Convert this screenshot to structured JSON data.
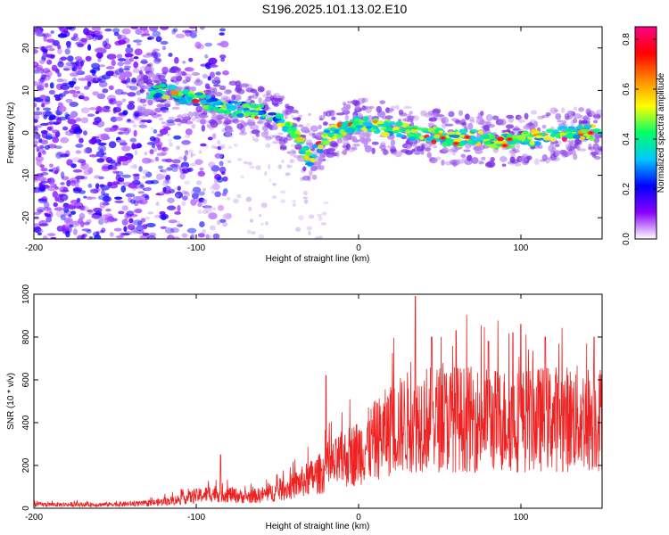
{
  "title": "S196.2025.101.13.02.E10",
  "colors": {
    "signal": "#ee2222",
    "axis": "#000000"
  },
  "chart_data": [
    {
      "type": "heatmap",
      "xlabel": "Height of straight line (km)",
      "ylabel": "Frequency (Hz)",
      "xlim": [
        -200,
        150
      ],
      "ylim": [
        -25,
        25
      ],
      "xticks": [
        -200,
        -100,
        0,
        100
      ],
      "yticks": [
        -20,
        -10,
        0,
        10,
        20
      ],
      "colorbar": {
        "label": "Normalized spectral amplitude",
        "range": [
          0,
          0.85
        ],
        "ticks": [
          0.0,
          0.2,
          0.4,
          0.6,
          0.8
        ],
        "colormap": [
          "#ffffff",
          "#8800ff",
          "#0000ff",
          "#00c8ff",
          "#00ff66",
          "#ffff00",
          "#ff8800",
          "#ff0000",
          "#ff0088"
        ]
      },
      "ridge": {
        "description_points": [
          [
            -125,
            10
          ],
          [
            -100,
            8
          ],
          [
            -80,
            6
          ],
          [
            -60,
            5
          ],
          [
            -45,
            2
          ],
          [
            -35,
            -3
          ],
          [
            -30,
            -6
          ],
          [
            -20,
            -1
          ],
          [
            -10,
            1
          ],
          [
            0,
            2
          ],
          [
            20,
            1
          ],
          [
            40,
            0
          ],
          [
            55,
            -1.5
          ],
          [
            70,
            -1
          ],
          [
            90,
            -2
          ],
          [
            110,
            -1
          ],
          [
            130,
            0
          ],
          [
            150,
            0
          ]
        ]
      }
    },
    {
      "type": "line",
      "xlabel": "Height of straight line (km)",
      "ylabel": "SNR (10 * v/v)",
      "xlim": [
        -200,
        150
      ],
      "ylim": [
        0,
        1000
      ],
      "xticks": [
        -200,
        -100,
        0,
        100
      ],
      "yticks": [
        0,
        200,
        400,
        600,
        800,
        1000
      ],
      "envelope": [
        [
          -200,
          20
        ],
        [
          -160,
          20
        ],
        [
          -130,
          25
        ],
        [
          -115,
          40
        ],
        [
          -100,
          65
        ],
        [
          -90,
          80
        ],
        [
          -80,
          75
        ],
        [
          -70,
          60
        ],
        [
          -60,
          70
        ],
        [
          -50,
          90
        ],
        [
          -40,
          120
        ],
        [
          -30,
          160
        ],
        [
          -20,
          200
        ],
        [
          -10,
          260
        ],
        [
          0,
          300
        ],
        [
          10,
          360
        ],
        [
          20,
          420
        ],
        [
          30,
          460
        ],
        [
          40,
          480
        ],
        [
          60,
          480
        ],
        [
          80,
          470
        ],
        [
          100,
          470
        ],
        [
          120,
          480
        ],
        [
          140,
          480
        ],
        [
          150,
          480
        ]
      ],
      "peaks": [
        [
          -85,
          250
        ],
        [
          -20,
          620
        ],
        [
          20,
          550
        ],
        [
          35,
          990
        ],
        [
          45,
          800
        ],
        [
          60,
          830
        ],
        [
          80,
          780
        ],
        [
          95,
          820
        ],
        [
          100,
          860
        ],
        [
          115,
          800
        ],
        [
          145,
          800
        ]
      ]
    }
  ]
}
